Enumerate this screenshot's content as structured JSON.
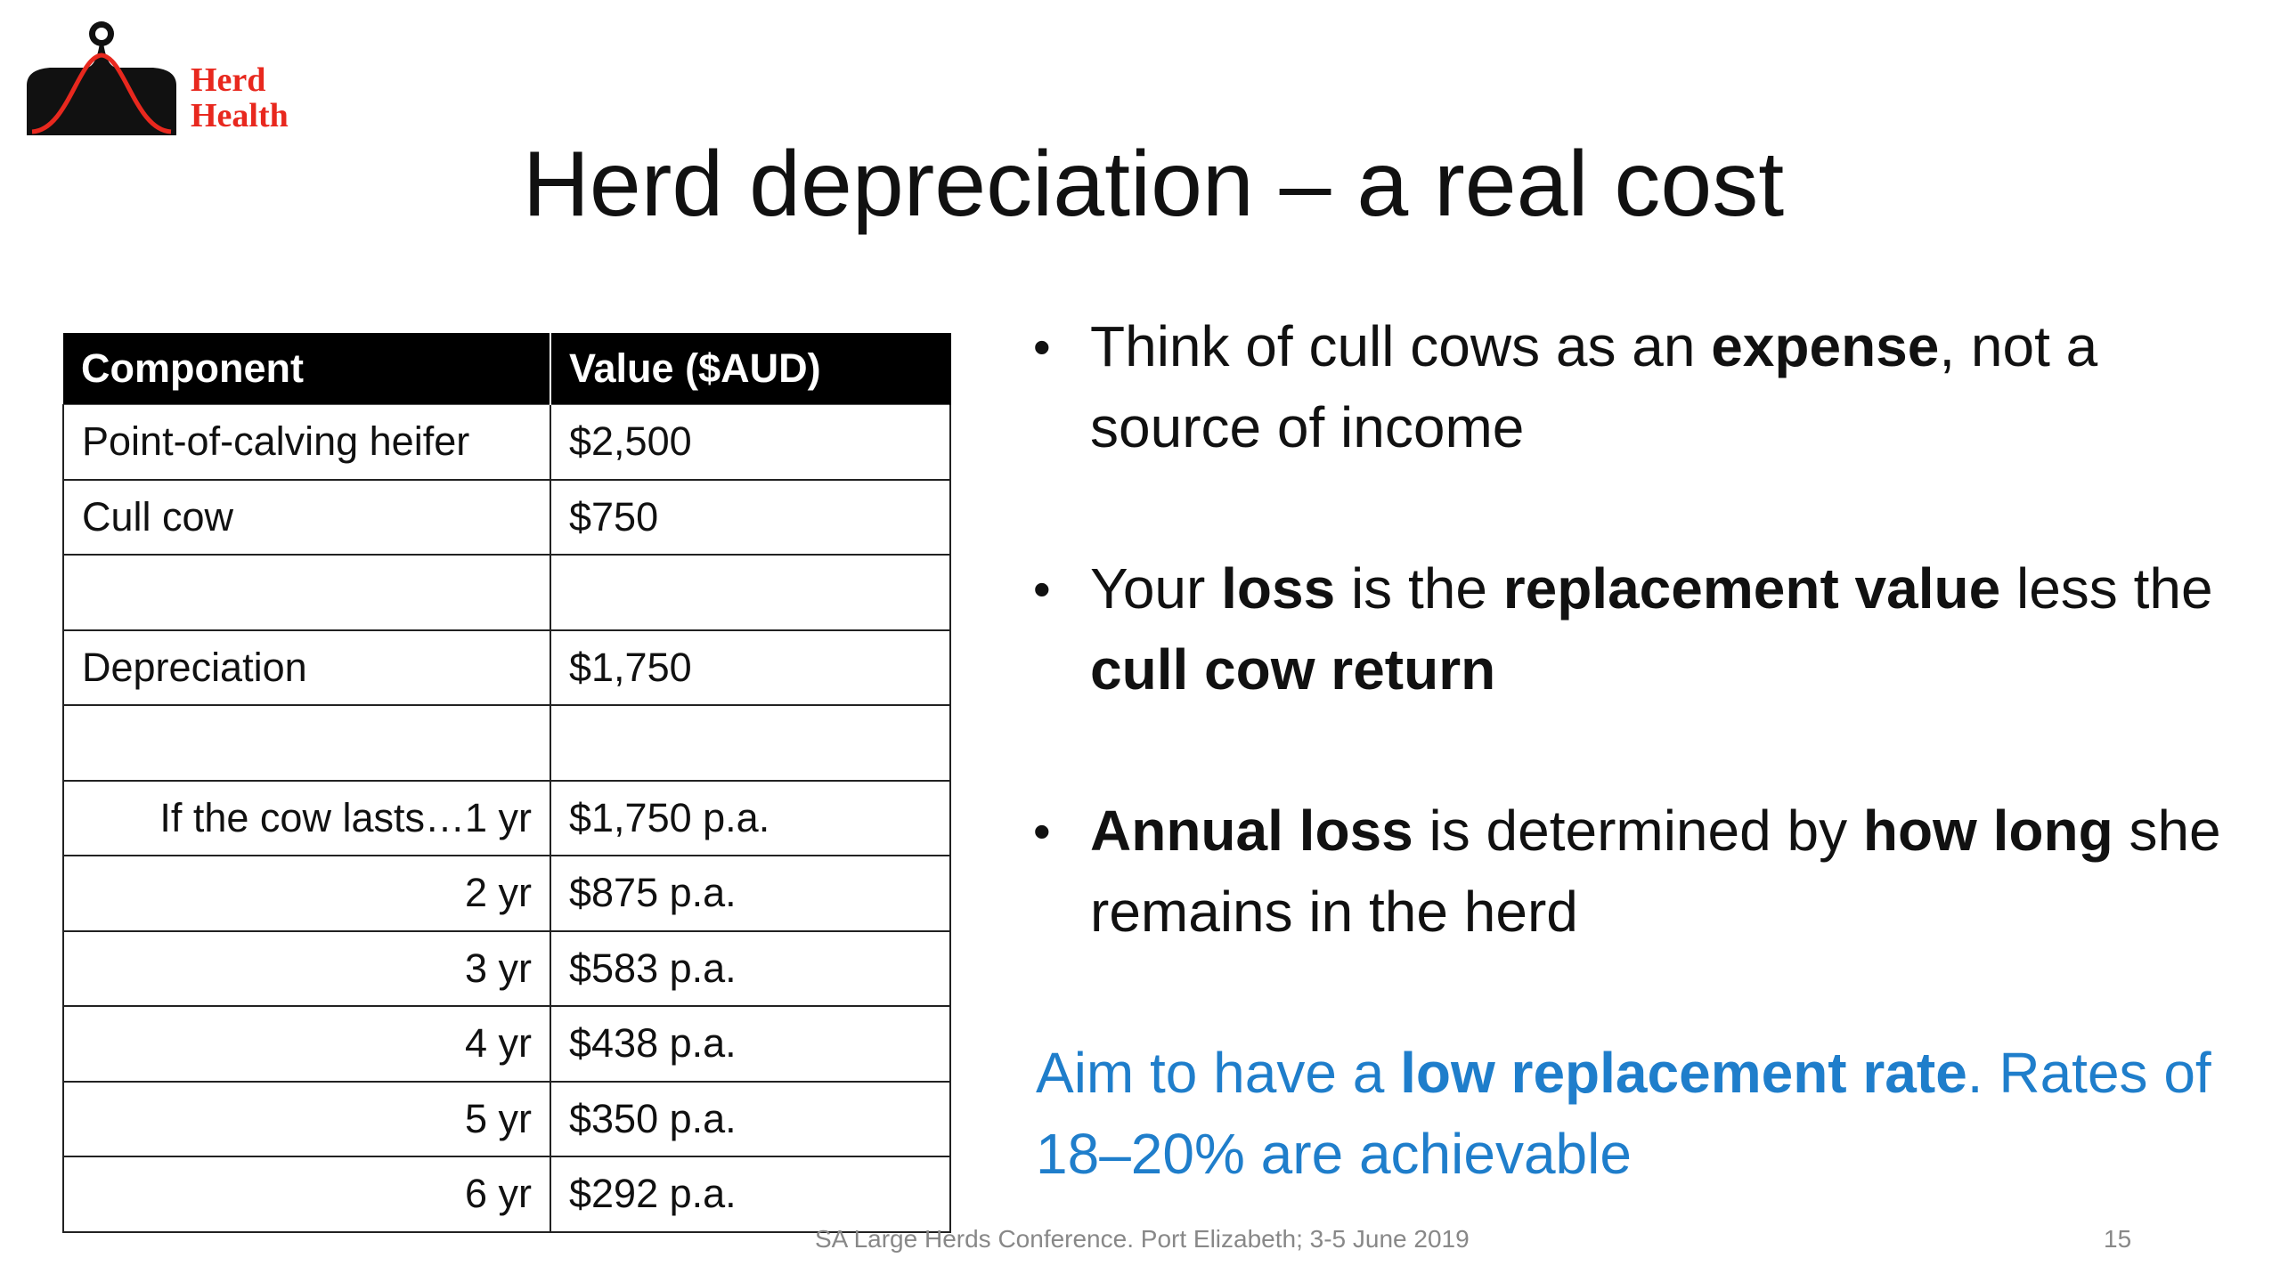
{
  "logo": {
    "line1": "Herd",
    "line2": "Health",
    "icon": "bell-curve-logo-icon"
  },
  "title": "Herd depreciation – a real cost",
  "table": {
    "headers": [
      "Component",
      "Value ($AUD)"
    ],
    "rows": [
      [
        "Point-of-calving heifer",
        "$2,500"
      ],
      [
        "Cull cow",
        "$750"
      ],
      [
        "",
        ""
      ],
      [
        "Depreciation",
        "$1,750"
      ],
      [
        "",
        ""
      ],
      [
        "If the cow lasts…1 yr",
        "$1,750 p.a."
      ],
      [
        "2 yr",
        "$875 p.a."
      ],
      [
        "3 yr",
        "$583 p.a."
      ],
      [
        "4 yr",
        "$438 p.a."
      ],
      [
        "5 yr",
        "$350 p.a."
      ],
      [
        "6 yr",
        "$292 p.a."
      ]
    ]
  },
  "bullets": [
    {
      "pre": "Think of cull cows as an ",
      "bold1": "expense",
      "mid": ", not a source of income",
      "bold2": "",
      "post": ""
    },
    {
      "pre": "Your ",
      "bold1": "loss",
      "mid": " is the ",
      "bold2": "replacement value",
      "post": " less the ",
      "bold3": "cull cow return"
    },
    {
      "pre": "",
      "bold1": "Annual loss",
      "mid": " is determined by ",
      "bold2": "how long",
      "post": " she remains in the herd"
    }
  ],
  "aim": {
    "pre": "Aim to have a ",
    "bold": "low replacement rate",
    "post": ". Rates of 18–20% are achievable"
  },
  "footer": "SA Large Herds Conference.  Port Elizabeth; 3-5 June 2019",
  "page_number": "15",
  "colors": {
    "accent_blue": "#1f7ecb",
    "logo_red": "#e8281e",
    "header_black": "#000000"
  }
}
